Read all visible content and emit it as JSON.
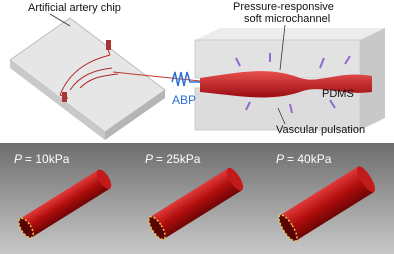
{
  "labels": {
    "chip": "Artificial artery chip",
    "channel": [
      "Pressure-responsive",
      "soft microchannel"
    ],
    "abp": "ABP",
    "pdms": "PDMS",
    "pulsation": "Vascular pulsation"
  },
  "panels": [
    {
      "variable": "P",
      "text": "= 10kPa"
    },
    {
      "variable": "P",
      "text": "= 25kPa"
    },
    {
      "variable": "P",
      "text": "= 40kPa"
    }
  ]
}
